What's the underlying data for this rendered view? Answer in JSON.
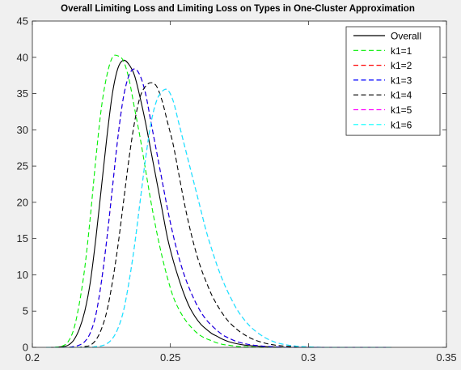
{
  "chart_data": {
    "type": "line",
    "title": "Overall Limiting Loss and Limiting Loss on Types in One-Cluster Approximation",
    "xlabel": "",
    "ylabel": "",
    "xlim": [
      0.2,
      0.35
    ],
    "ylim": [
      0,
      45
    ],
    "xticks": [
      0.2,
      0.25,
      0.3,
      0.35
    ],
    "xtick_labels": [
      "0.2",
      "0.25",
      "0.3",
      "0.35"
    ],
    "yticks": [
      0,
      5,
      10,
      15,
      20,
      25,
      30,
      35,
      40,
      45
    ],
    "ytick_labels": [
      "0",
      "5",
      "10",
      "15",
      "20",
      "25",
      "30",
      "35",
      "40",
      "45"
    ],
    "grid": false,
    "legend_position": "top-right",
    "x": [
      0.205,
      0.208,
      0.211,
      0.213,
      0.215,
      0.217,
      0.219,
      0.221,
      0.223,
      0.225,
      0.227,
      0.229,
      0.231,
      0.233,
      0.235,
      0.237,
      0.239,
      0.241,
      0.243,
      0.245,
      0.247,
      0.249,
      0.251,
      0.253,
      0.255,
      0.257,
      0.259,
      0.261,
      0.263,
      0.265,
      0.267,
      0.269,
      0.271,
      0.274,
      0.277,
      0.28,
      0.284,
      0.288,
      0.292,
      0.296,
      0.3,
      0.305,
      0.31,
      0.315,
      0.32,
      0.33
    ],
    "series": [
      {
        "name": "Overall",
        "color": "#000000",
        "dash": "solid",
        "values": [
          0,
          0,
          0.1,
          0.3,
          1,
          2.5,
          5,
          9,
          15,
          22,
          29,
          35,
          38.5,
          39.6,
          39,
          37.5,
          34.5,
          31,
          27,
          23,
          19,
          15,
          12,
          9.5,
          7.3,
          5.5,
          4.2,
          3.2,
          2.5,
          1.9,
          1.5,
          1.1,
          0.8,
          0.5,
          0.3,
          0.2,
          0.1,
          0.05,
          0,
          0,
          0,
          0,
          0,
          0,
          0,
          0
        ]
      },
      {
        "name": "k1=1",
        "color": "#00ee00",
        "dash": "dashed",
        "values": [
          0,
          0,
          0.2,
          0.8,
          2.5,
          6,
          11,
          18,
          26,
          33,
          37.5,
          40,
          40.2,
          39.5,
          37,
          33,
          29,
          24.5,
          20,
          16,
          12.5,
          9.5,
          7,
          5.3,
          4,
          3,
          2.2,
          1.6,
          1.2,
          0.9,
          0.6,
          0.4,
          0.3,
          0.15,
          0.08,
          0.04,
          0,
          0,
          0,
          0,
          0,
          0,
          0,
          0,
          0,
          0
        ]
      },
      {
        "name": "k1=2",
        "color": "#ff0000",
        "dash": "dashed",
        "values": [
          0,
          0,
          0,
          0,
          0.1,
          0.3,
          0.8,
          2,
          4.5,
          9,
          15,
          22,
          29,
          34.5,
          37.5,
          38.4,
          37.5,
          35,
          31,
          27,
          23,
          19,
          15.5,
          12.5,
          10,
          8,
          6.3,
          4.9,
          3.8,
          3,
          2.3,
          1.7,
          1.3,
          0.8,
          0.5,
          0.3,
          0.15,
          0.07,
          0,
          0,
          0,
          0,
          0,
          0,
          0,
          0
        ]
      },
      {
        "name": "k1=3",
        "color": "#0000ff",
        "dash": "dashed",
        "values": [
          0,
          0,
          0,
          0,
          0.1,
          0.3,
          0.8,
          2,
          4.5,
          9,
          15,
          22,
          29,
          34.5,
          37.5,
          38.4,
          37.5,
          35,
          31,
          27,
          23,
          19,
          15.5,
          12.5,
          10,
          8,
          6.3,
          4.9,
          3.8,
          3,
          2.3,
          1.7,
          1.3,
          0.8,
          0.5,
          0.3,
          0.15,
          0.07,
          0,
          0,
          0,
          0,
          0,
          0,
          0,
          0
        ]
      },
      {
        "name": "k1=4",
        "color": "#000000",
        "dash": "dashed",
        "values": [
          0,
          0,
          0,
          0,
          0,
          0,
          0.1,
          0.3,
          1,
          2.5,
          5,
          9,
          14,
          20,
          26,
          31,
          34.5,
          36,
          36.5,
          36,
          34,
          31,
          28,
          24,
          20,
          16.5,
          13.5,
          11,
          9,
          7.2,
          5.8,
          4.6,
          3.6,
          2.5,
          1.7,
          1.1,
          0.6,
          0.3,
          0.15,
          0.07,
          0,
          0,
          0,
          0,
          0,
          0
        ]
      },
      {
        "name": "k1=5",
        "color": "#ff00ff",
        "dash": "dashed",
        "values": [
          0,
          0,
          0,
          0,
          0,
          0,
          0,
          0,
          0.1,
          0.2,
          0.5,
          1.2,
          2.6,
          5,
          9,
          14,
          20,
          26,
          31,
          34,
          35.3,
          35.5,
          34,
          31,
          28,
          25,
          22,
          19,
          16,
          13.5,
          11.2,
          9.2,
          7.5,
          5.3,
          3.7,
          2.5,
          1.4,
          0.7,
          0.35,
          0.15,
          0.07,
          0,
          0,
          0,
          0,
          0
        ]
      },
      {
        "name": "k1=6",
        "color": "#00ffff",
        "dash": "dashed",
        "values": [
          0,
          0,
          0,
          0,
          0,
          0,
          0,
          0,
          0.1,
          0.2,
          0.5,
          1.2,
          2.6,
          5,
          9,
          14,
          20,
          26,
          31,
          34,
          35.3,
          35.5,
          34,
          31,
          28,
          25,
          22,
          19,
          16,
          13.5,
          11.2,
          9.2,
          7.5,
          5.3,
          3.7,
          2.5,
          1.4,
          0.7,
          0.35,
          0.15,
          0.07,
          0,
          0,
          0,
          0,
          0
        ]
      }
    ]
  }
}
